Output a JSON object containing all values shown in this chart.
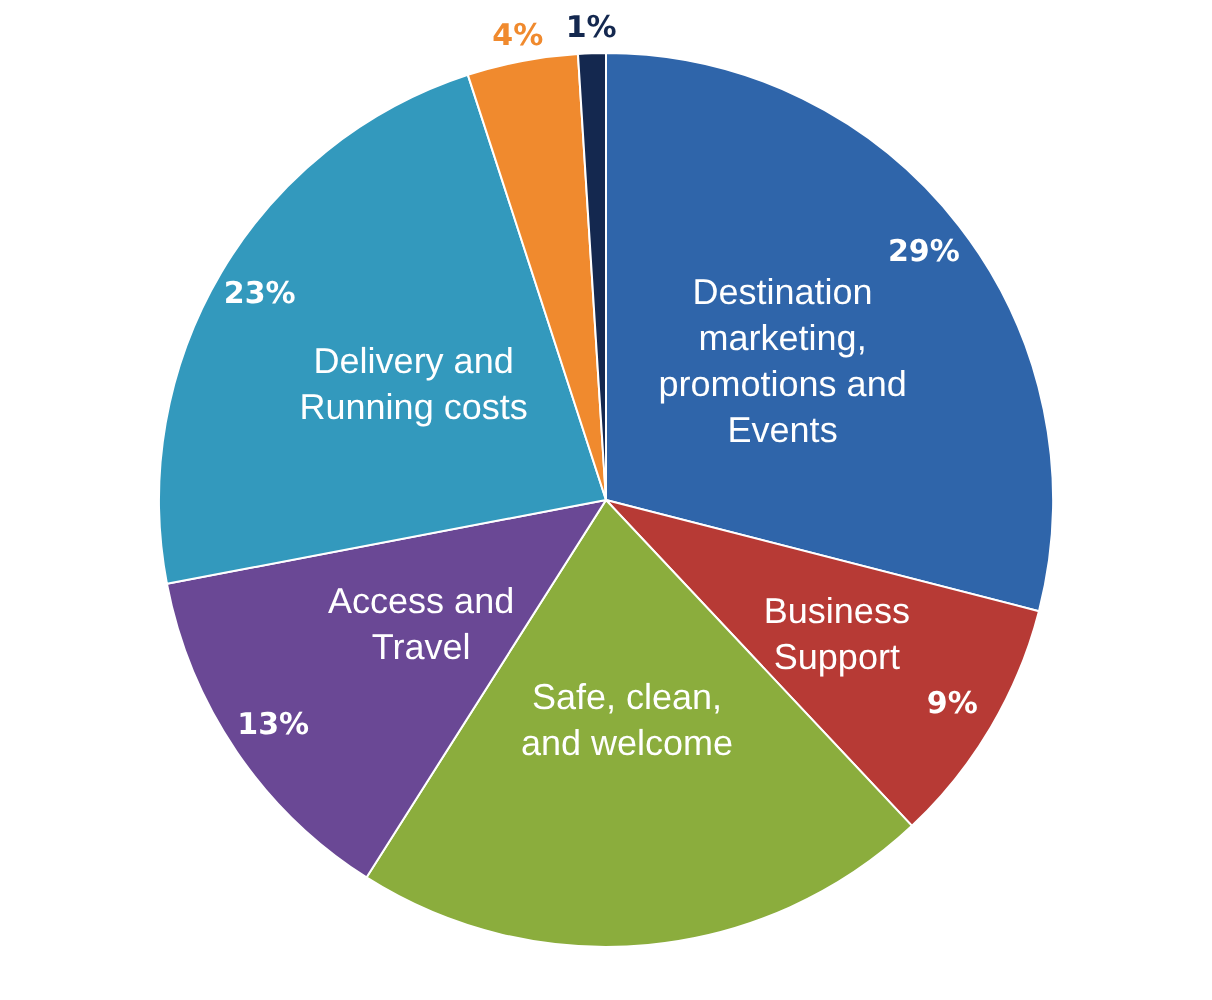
{
  "chart_data": {
    "type": "pie",
    "categories": [
      "Destination marketing, promotions and Events",
      "Business Support",
      "Safe, clean, and welcome",
      "Access and Travel",
      "Delivery and Running costs",
      null,
      null
    ],
    "values": [
      29,
      9,
      21,
      13,
      23,
      4,
      1
    ],
    "value_labels": [
      "29%",
      "9%",
      null,
      "13%",
      "23%",
      "4%",
      "1%"
    ],
    "colors": [
      "#2f65aa",
      "#b73a35",
      "#8bad3d",
      "#6a4895",
      "#3399bd",
      "#f08a2e",
      "#14284f"
    ],
    "legend": false
  }
}
